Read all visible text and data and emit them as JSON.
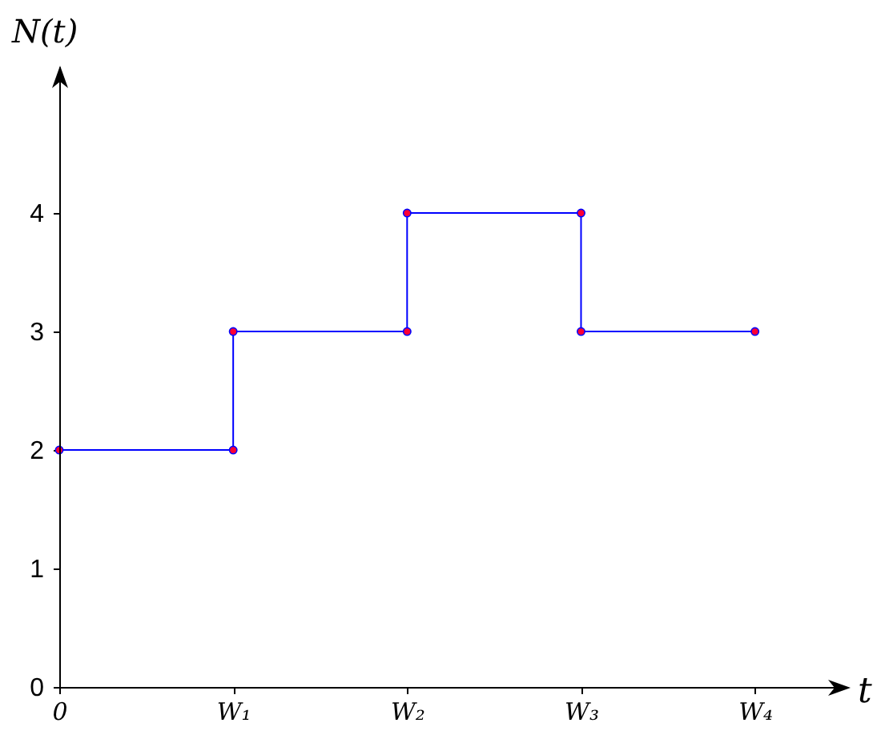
{
  "chart_data": {
    "type": "step",
    "xlabel": "t",
    "ylabel": "N(t)",
    "categories": [
      "0",
      "W₁",
      "W₂",
      "W₃",
      "W₄"
    ],
    "series": [
      {
        "color": "#0000ff",
        "values": [
          2,
          3,
          4,
          3,
          3
        ]
      },
      {
        "type": "scatter",
        "color": "#ff0033",
        "marker": "circle",
        "x": [
          "0",
          "W₁",
          "W₁",
          "W₂",
          "W₂",
          "W₃",
          "W₃",
          "W₄"
        ],
        "values": [
          2,
          2,
          3,
          3,
          4,
          4,
          3,
          3
        ]
      }
    ],
    "ylim": [
      0,
      5.23
    ],
    "yticks": [
      0,
      1,
      2,
      3,
      4
    ]
  }
}
